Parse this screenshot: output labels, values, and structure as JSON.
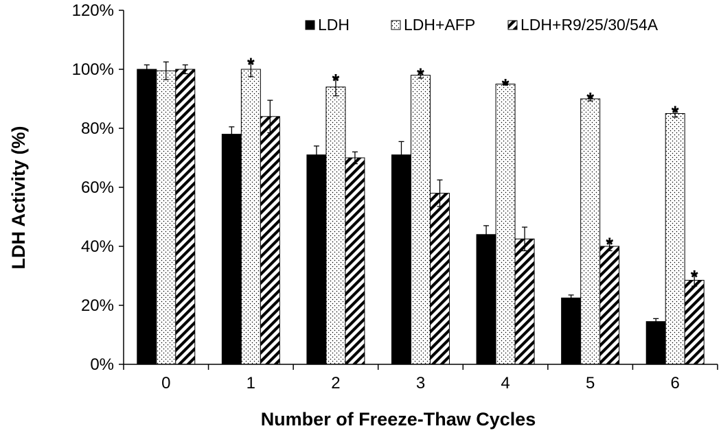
{
  "chart_data": {
    "type": "bar",
    "title": "",
    "xlabel": "Number of Freeze-Thaw Cycles",
    "ylabel": "LDH Activity (%)",
    "ylim": [
      0,
      120
    ],
    "ytick_values": [
      0,
      20,
      40,
      60,
      80,
      100,
      120
    ],
    "yticks": [
      "0%",
      "20%",
      "40%",
      "60%",
      "80%",
      "100%",
      "120%"
    ],
    "categories": [
      "0",
      "1",
      "2",
      "3",
      "4",
      "5",
      "6"
    ],
    "legend_position": "top-right",
    "significance_marker": "*",
    "series": [
      {
        "name": "LDH",
        "fill": "solid",
        "color": "#000000",
        "values": [
          100,
          78,
          71,
          71,
          44,
          22.5,
          14.5
        ],
        "errors": [
          1.5,
          2.5,
          3,
          4.5,
          3,
          1,
          1
        ],
        "significant": [
          false,
          false,
          false,
          false,
          false,
          false,
          false
        ]
      },
      {
        "name": "LDH+AFP",
        "fill": "dotted",
        "color": "#000000",
        "values": [
          99.5,
          100,
          94,
          98,
          95,
          90,
          85
        ],
        "errors": [
          3,
          2.5,
          3,
          1,
          0.3,
          0.7,
          1.2
        ],
        "significant": [
          false,
          true,
          true,
          true,
          true,
          true,
          true
        ]
      },
      {
        "name": "LDH+R9/25/30/54A",
        "fill": "hatched",
        "color": "#000000",
        "values": [
          100,
          84,
          70,
          58,
          42.5,
          40,
          28.5
        ],
        "errors": [
          1.5,
          5.5,
          2,
          4.5,
          4,
          1.5,
          2
        ],
        "significant": [
          false,
          false,
          false,
          false,
          false,
          true,
          true
        ]
      }
    ]
  }
}
